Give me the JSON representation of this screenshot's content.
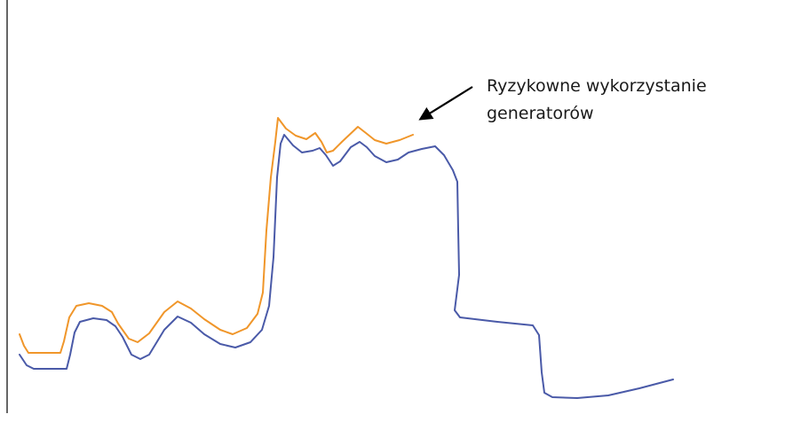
{
  "annotation": {
    "lines": [
      "Ryzykowne wykorzystanie",
      "generatorów"
    ]
  }
}
